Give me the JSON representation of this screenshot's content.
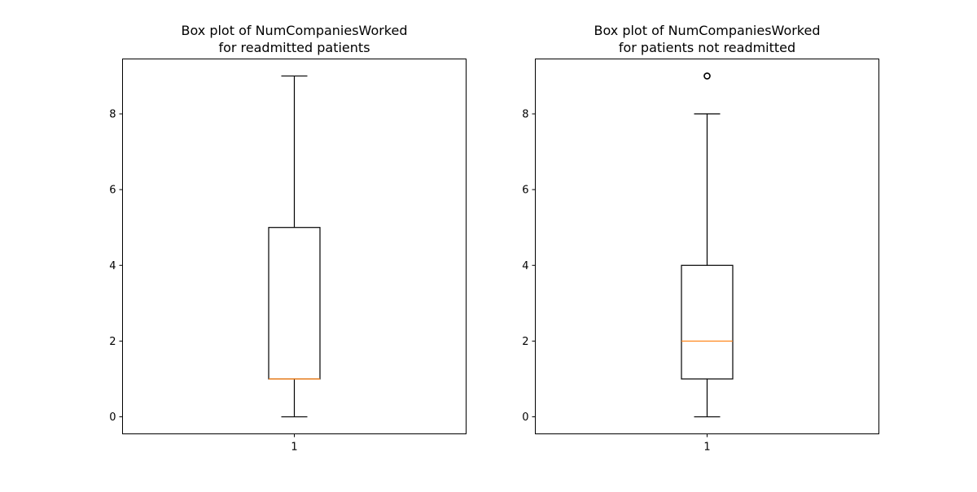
{
  "chart_data": [
    {
      "type": "box",
      "title": "Box plot of NumCompaniesWorked\nfor readmitted patients",
      "x_tick_labels": [
        "1"
      ],
      "y_ticks": [
        0,
        2,
        4,
        6,
        8
      ],
      "ylim": [
        -0.45,
        9.45
      ],
      "grid": false,
      "boxes": [
        {
          "position": "1",
          "whisker_low": 0,
          "q1": 1,
          "median": 1,
          "q3": 5,
          "whisker_high": 9,
          "outliers": []
        }
      ]
    },
    {
      "type": "box",
      "title": "Box plot of NumCompaniesWorked\nfor patients not readmitted",
      "x_tick_labels": [
        "1"
      ],
      "y_ticks": [
        0,
        2,
        4,
        6,
        8
      ],
      "ylim": [
        -0.45,
        9.45
      ],
      "grid": false,
      "boxes": [
        {
          "position": "1",
          "whisker_low": 0,
          "q1": 1,
          "median": 2,
          "q3": 4,
          "whisker_high": 8,
          "outliers": [
            9
          ]
        }
      ]
    }
  ],
  "colors": {
    "box_edge": "#000000",
    "median": "#ff7f0e",
    "outlier_edge": "#000000",
    "background": "#ffffff"
  }
}
